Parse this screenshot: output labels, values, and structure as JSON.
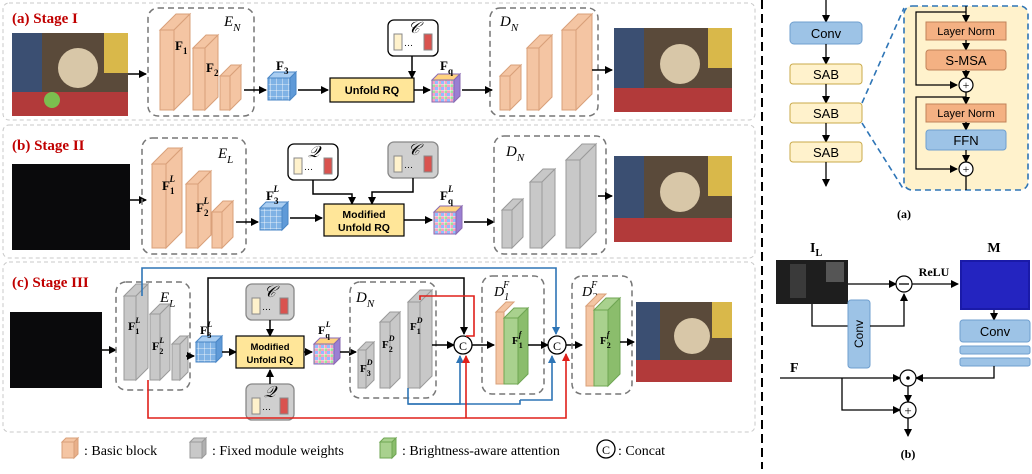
{
  "panels": {
    "a_stage1": "(a) Stage I",
    "b_stage2": "(b) Stage II",
    "c_stage3": "(c) Stage III"
  },
  "stage1": {
    "encoder": "E",
    "encoder_sub": "N",
    "f1": "F",
    "f1_sub": "1",
    "f2": "F",
    "f2_sub": "2",
    "f3": "F",
    "f3_sub": "3",
    "codebook": "𝒞",
    "rq": "Unfold  RQ",
    "fq": "F",
    "fq_sub": "q",
    "decoder": "D",
    "decoder_sub": "N"
  },
  "stage2": {
    "encoder": "E",
    "encoder_sub": "L",
    "f1": "F",
    "f1_sub": "1",
    "f1_sup": "L",
    "f2": "F",
    "f2_sub": "2",
    "f2_sup": "L",
    "f3": "F",
    "f3_sub": "3",
    "f3_sup": "L",
    "codebook_q": "𝒬",
    "codebook_c": "𝒞",
    "rq_line1": "Modified",
    "rq_line2": "Unfold RQ",
    "fq": "F",
    "fq_sub": "q",
    "fq_sup": "L",
    "decoder": "D",
    "decoder_sub": "N"
  },
  "stage3": {
    "encoder": "E",
    "encoder_sub": "L",
    "decoder": "D",
    "decoder_sub": "N",
    "codebook_c": "𝒞",
    "codebook_q": "𝒬",
    "rq_line1": "Modified",
    "rq_line2": "Unfold RQ",
    "d1f": "D",
    "d1f_sub": "1",
    "d1f_sup": "F",
    "d2f": "D",
    "d2f_sub": "2",
    "d2f_sup": "F",
    "concat": "C"
  },
  "legend": {
    "basic": ": Basic block",
    "fixed": ": Fixed module weights",
    "attention": ": Brightness-aware attention",
    "concat_symbol": "C",
    "concat": ": Concat"
  },
  "right_a": {
    "conv": "Conv",
    "sab1": "SAB",
    "sab2": "SAB",
    "sab3": "SAB",
    "ln1": "Layer Norm",
    "smsa": "S-MSA",
    "ln2": "Layer Norm",
    "ffn": "FFN",
    "caption": "(a)"
  },
  "right_b": {
    "il": "I",
    "il_sub": "L",
    "m": "M",
    "relu": "ReLU",
    "conv_v": "Conv",
    "conv_h": "Conv",
    "f": "F",
    "caption": "(b)"
  },
  "colors": {
    "stage_title": "#c00000",
    "basic_block": "#f4c5a3",
    "fixed_block": "#c8c8c8",
    "attention_block": "#a9d18e",
    "rq_box": "#ffe699",
    "conv_box": "#9dc3e6",
    "sab_box": "#fff2cc",
    "ln_box": "#f4b183",
    "skip_blue": "#2e75b6",
    "skip_red": "#e0201a"
  }
}
